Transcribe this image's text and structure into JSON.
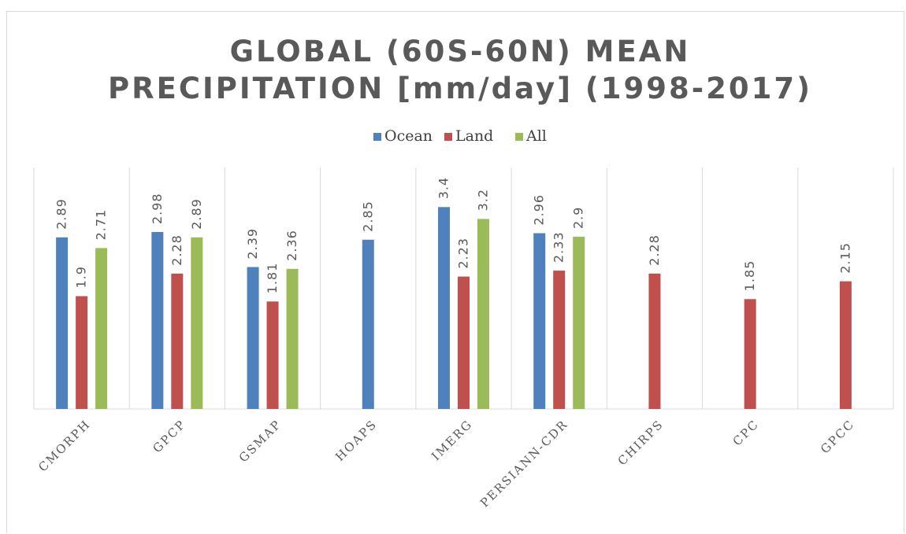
{
  "chart_data": {
    "type": "bar",
    "title_lines": [
      "GLOBAL (60S-60N) MEAN",
      "PRECIPITATION [mm/day]  (1998-2017)"
    ],
    "xlabel": "",
    "ylabel": "",
    "categories": [
      "CMORPH",
      "GPCP",
      "GSMAP",
      "HOAPS",
      "IMERG",
      "PERSIANN-CDR",
      "CHIRPS",
      "CPC",
      "GPCC"
    ],
    "series": [
      {
        "name": "Ocean",
        "color": "#4f81bd",
        "values": [
          2.89,
          2.98,
          2.39,
          2.85,
          3.4,
          2.96,
          null,
          null,
          null
        ]
      },
      {
        "name": "Land",
        "color": "#c0504d",
        "values": [
          1.9,
          2.28,
          1.81,
          null,
          2.23,
          2.33,
          2.28,
          1.85,
          2.15
        ]
      },
      {
        "name": "All",
        "color": "#9bbb59",
        "values": [
          2.71,
          2.89,
          2.36,
          null,
          3.2,
          2.9,
          null,
          null,
          null
        ]
      }
    ],
    "data_labels": [
      [
        "2.89",
        "2.98",
        "2.39",
        "2.85",
        "3.4",
        "2.96",
        null,
        null,
        null
      ],
      [
        "1.9",
        "2.28",
        "1.81",
        null,
        "2.23",
        "2.33",
        "2.28",
        "1.85",
        "2.15"
      ],
      [
        "2.71",
        "2.89",
        "2.36",
        null,
        "3.2",
        "2.9",
        null,
        null,
        null
      ]
    ],
    "ylim": [
      0,
      3.5
    ],
    "grid": false,
    "category_dividers": true,
    "legend_position": "top"
  }
}
